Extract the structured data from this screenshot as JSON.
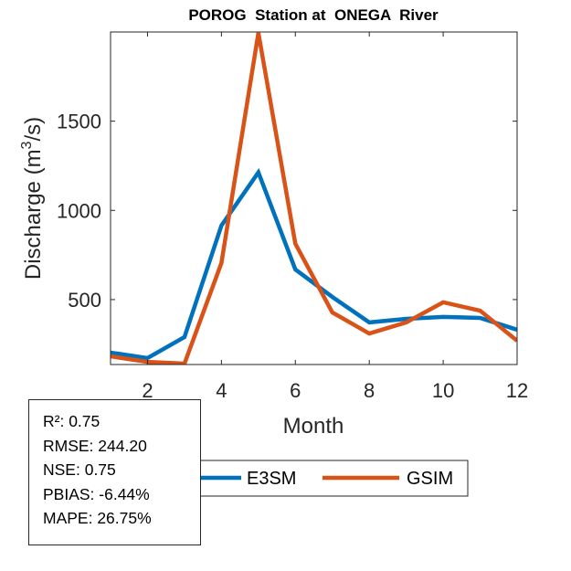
{
  "chart_data": {
    "type": "line",
    "title": "POROG  Station at  ONEGA  River",
    "xlabel": "Month",
    "ylabel": "Discharge (m^3/s)",
    "ylabel_parts": {
      "pre": "Discharge (m",
      "sup": "3",
      "post": "/s)"
    },
    "x": [
      1,
      2,
      3,
      4,
      5,
      6,
      7,
      8,
      9,
      10,
      11,
      12
    ],
    "xlim": [
      1,
      12
    ],
    "ylim": [
      136,
      2000
    ],
    "xticks": [
      2,
      4,
      6,
      8,
      10,
      12
    ],
    "xtick_labels": [
      "2",
      "4",
      "6",
      "8",
      "10",
      "12"
    ],
    "yticks": [
      500,
      1000,
      1500
    ],
    "ytick_labels": [
      "500",
      "1000",
      "1500"
    ],
    "grid": false,
    "series": [
      {
        "name": "E3SM",
        "color": "#0072BD",
        "values": [
          203,
          172,
          290,
          915,
          1213,
          669,
          515,
          372,
          392,
          403,
          397,
          331
        ]
      },
      {
        "name": "GSIM",
        "color": "#D95319",
        "values": [
          182,
          151,
          141,
          705,
          1995,
          813,
          428,
          310,
          372,
          485,
          438,
          269
        ]
      }
    ],
    "legend": {
      "placement": "bottom-outside",
      "entries": [
        "E3SM",
        "GSIM"
      ]
    }
  },
  "stats": [
    "R²: 0.75",
    "RMSE: 244.20",
    "NSE: 0.75",
    "PBIAS: -6.44%",
    "MAPE: 26.75%"
  ]
}
